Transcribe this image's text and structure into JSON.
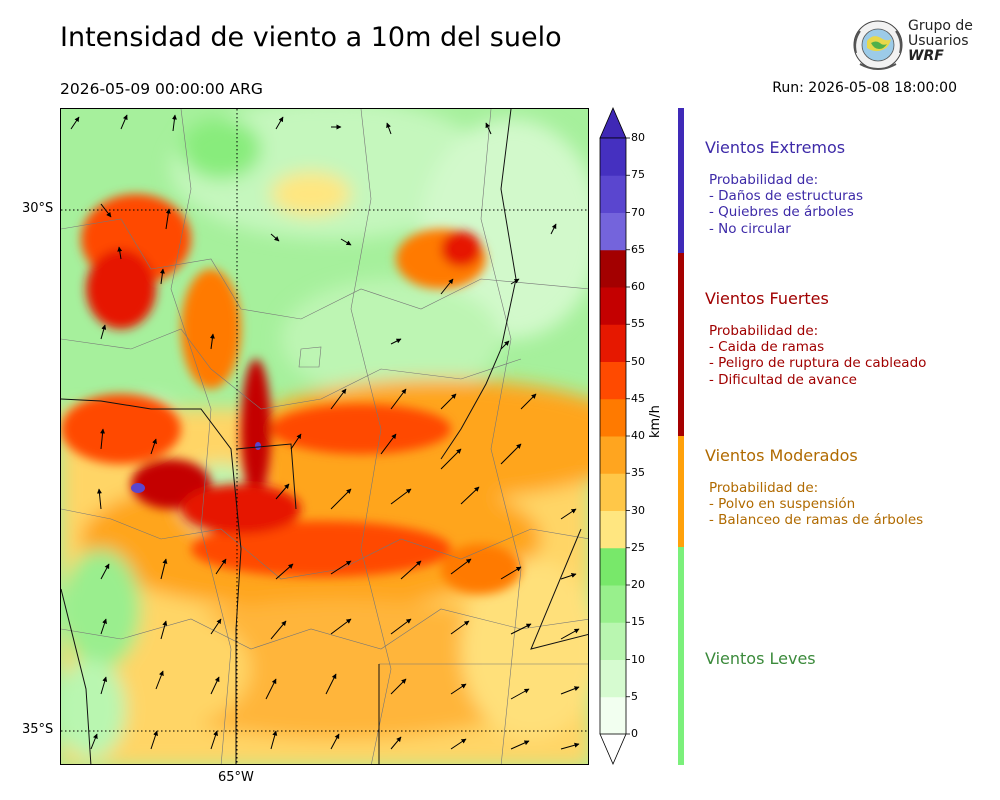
{
  "header": {
    "title": "Intensidad de viento a 10m del suelo",
    "valid_time": "2026-05-09 00:00:00 ARG",
    "run_time": "Run: 2026-05-08 18:00:00"
  },
  "logo": {
    "line1": "Grupo de",
    "line2": "Usuarios",
    "line3": "WRF",
    "icon": "globe-icon"
  },
  "map": {
    "lat_labels": [
      "30°S",
      "35°S"
    ],
    "lon_labels": [
      "65°W"
    ],
    "gridlines": "dotted"
  },
  "colorbar": {
    "units": "km/h",
    "ticks": [
      "0",
      "5",
      "10",
      "15",
      "20",
      "25",
      "30",
      "35",
      "40",
      "45",
      "50",
      "55",
      "60",
      "65",
      "70",
      "75",
      "80"
    ],
    "colors": [
      "#f2fff0",
      "#d6fbd0",
      "#b9f6b0",
      "#98f08c",
      "#78e86a",
      "#ffe680",
      "#ffc748",
      "#ffa51f",
      "#ff7a00",
      "#ff4a00",
      "#e61800",
      "#c40000",
      "#a30000",
      "#7464dc",
      "#5a46cf",
      "#4530c0"
    ],
    "extend_min_color": "#ffffff",
    "extend_max_color": "#3f28b5"
  },
  "categories": [
    {
      "title": "Vientos Extremos",
      "color": "#3d2aa8",
      "bar_color": "#3f2ab8",
      "desc_header": "Probabilidad de:",
      "items": [
        "- Daños de estructuras",
        "- Quiebres de árboles",
        "- No circular"
      ]
    },
    {
      "title": "Vientos Fuertes",
      "color": "#a00000",
      "bar_color": "#a50000",
      "desc_header": "Probabilidad de:",
      "items": [
        "- Caida de ramas",
        "- Peligro de ruptura de cableado",
        "- Dificultad de avance"
      ]
    },
    {
      "title": "Vientos Moderados",
      "color": "#b06a00",
      "bar_color": "#ffa10a",
      "desc_header": "Probabilidad de:",
      "items": [
        "- Polvo en suspensión",
        "- Balanceo de ramas de árboles"
      ]
    },
    {
      "title": "Vientos Leves",
      "color": "#3b8a3b",
      "bar_color": "#7bf07b",
      "desc_header": "",
      "items": []
    }
  ]
}
